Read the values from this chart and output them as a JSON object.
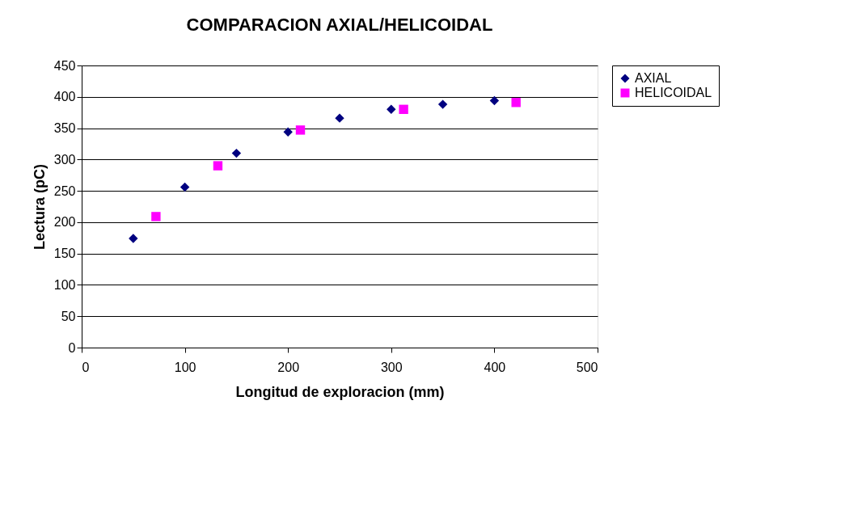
{
  "chart_data": {
    "type": "scatter",
    "title": "COMPARACION AXIAL/HELICOIDAL",
    "xlabel": "Longitud de exploracion (mm)",
    "ylabel": "Lectura (pC)",
    "xlim": [
      0,
      500
    ],
    "xticks": [
      0,
      100,
      200,
      300,
      400,
      500
    ],
    "ylim": [
      0,
      450
    ],
    "yticks": [
      0,
      50,
      100,
      150,
      200,
      250,
      300,
      350,
      400,
      450
    ],
    "grid": "y",
    "legend": "right",
    "series": [
      {
        "name": "AXIAL",
        "color": "#000080",
        "marker": "diamond",
        "x": [
          50,
          100,
          150,
          200,
          250,
          300,
          350,
          400
        ],
        "values": [
          174,
          256,
          310,
          344,
          366,
          380,
          388,
          394
        ]
      },
      {
        "name": "HELICOIDAL",
        "color": "#ff00ff",
        "marker": "square",
        "x": [
          72,
          132,
          212,
          312,
          421
        ],
        "values": [
          209,
          290,
          347,
          380,
          391
        ]
      }
    ]
  }
}
